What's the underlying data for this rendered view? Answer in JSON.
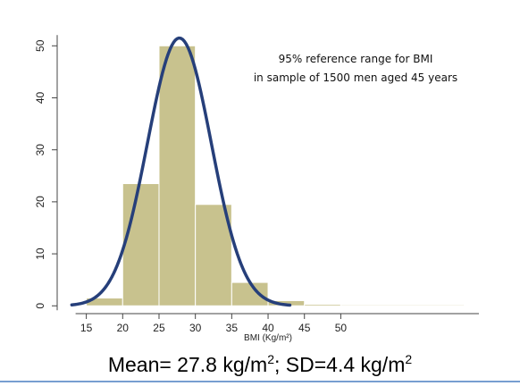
{
  "chart_data": {
    "type": "bar",
    "bins": [
      {
        "from": 15,
        "to": 20,
        "value": 1.5
      },
      {
        "from": 20,
        "to": 25,
        "value": 23.5
      },
      {
        "from": 25,
        "to": 30,
        "value": 50
      },
      {
        "from": 30,
        "to": 35,
        "value": 19.5
      },
      {
        "from": 35,
        "to": 40,
        "value": 4.5
      },
      {
        "from": 40,
        "to": 45,
        "value": 1
      },
      {
        "from": 45,
        "to": 50,
        "value": 0.3
      },
      {
        "from": 50,
        "to": 67,
        "value": 0.2
      }
    ],
    "curve": {
      "mean": 27.8,
      "sd": 4.4,
      "peak": 51.5,
      "x_range": [
        13,
        43
      ]
    },
    "xlim": [
      10.5,
      69
    ],
    "ylim": [
      -1.5,
      54
    ],
    "xticks": [
      15,
      20,
      25,
      30,
      35,
      40,
      45,
      50
    ],
    "yticks": [
      0,
      10,
      20,
      30,
      40,
      50
    ],
    "xlabel": "BMI (Kg/m²)",
    "ylabel": "",
    "annotation": [
      "95% reference range for BMI",
      "in sample of 1500 men aged 45 years"
    ],
    "caption": {
      "mean_text": "Mean= 27.8 kg/m",
      "exp": "2",
      "mid_text": "; SD=4.4 kg/m",
      "exp2": "2"
    },
    "colors": {
      "bar_fill": "#c8c28e",
      "bar_stroke": "#ffffff",
      "curve": "#263f7a",
      "axis": "#444444",
      "rule": "#4a7fc1"
    },
    "grid": false
  }
}
